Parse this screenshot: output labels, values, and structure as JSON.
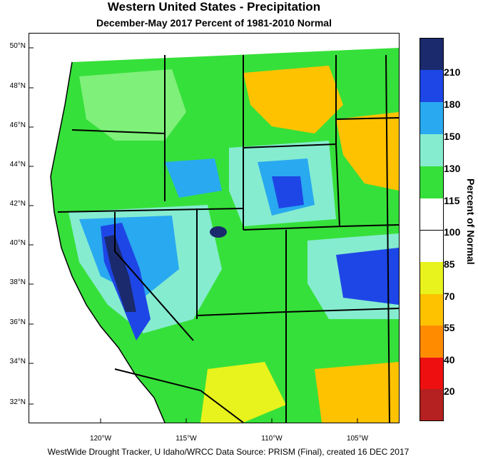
{
  "title": "Western United States - Precipitation",
  "subtitle": "December-May 2017  Percent of 1981-2010 Normal",
  "footer": "WestWide Drought Tracker, U Idaho/WRCC Data Source: PRISM (Final), created 16 DEC 2017",
  "latitude_labels": [
    "50°N",
    "48°N",
    "46°N",
    "44°N",
    "42°N",
    "40°N",
    "38°N",
    "36°N",
    "34°N",
    "32°N"
  ],
  "longitude_labels": [
    "120°W",
    "115°W",
    "110°W",
    "105°W"
  ],
  "legend": {
    "title": "Percent of Normal",
    "labels": [
      "210",
      "180",
      "150",
      "130",
      "115",
      "100",
      "85",
      "70",
      "55",
      "40",
      "20"
    ],
    "colors": [
      "#1a2a6c",
      "#1e46e6",
      "#29a9f0",
      "#86ecd0",
      "#36e03a",
      "#ffffff",
      "#ffffff",
      "#e8f21c",
      "#ffc200",
      "#ff8c00",
      "#ee1010",
      "#b52020"
    ]
  },
  "map_colors": {
    "water": "#ffffff",
    "outside": "#f0f0f0",
    "green": "#36e03a",
    "light_green": "#7ff07a",
    "aqua": "#86ecd0",
    "light_blue": "#29a9f0",
    "blue": "#1e46e6",
    "dark_blue": "#1a2a6c",
    "yellow": "#e8f21c",
    "orange": "#ffc200",
    "white": "#ffffff"
  }
}
